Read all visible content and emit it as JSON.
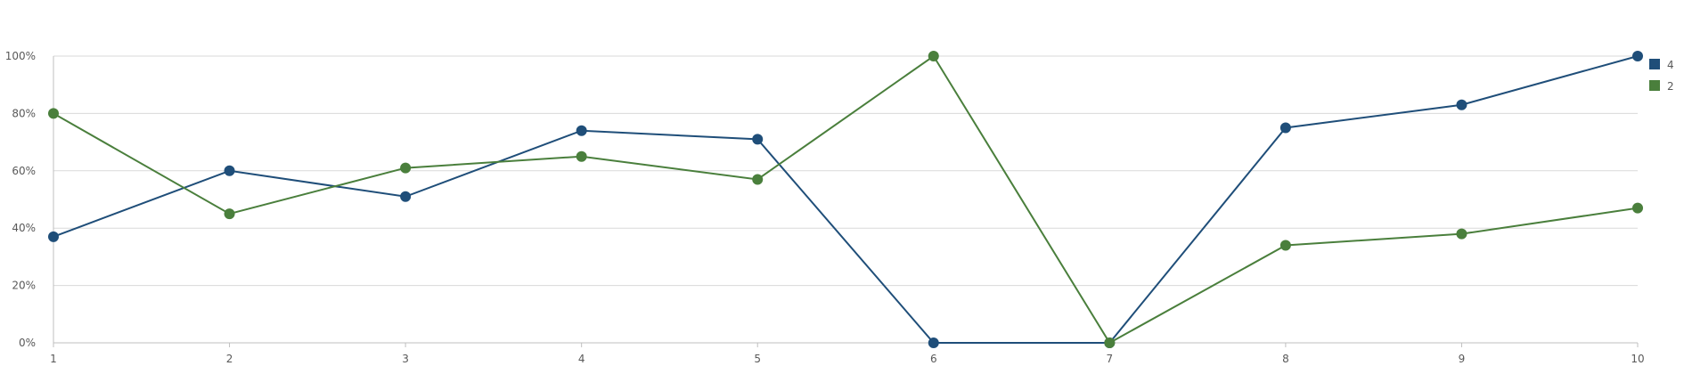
{
  "chart_data": {
    "type": "line",
    "title": "",
    "xlabel": "",
    "ylabel": "",
    "categories": [
      "1",
      "2",
      "3",
      "4",
      "5",
      "6",
      "7",
      "8",
      "9",
      "10"
    ],
    "ylim": [
      0,
      100
    ],
    "y_ticks": [
      "0%",
      "20%",
      "40%",
      "60%",
      "80%",
      "100%"
    ],
    "y_tick_values": [
      0,
      20,
      40,
      60,
      80,
      100
    ],
    "grid": true,
    "legend_position": "top-right",
    "series": [
      {
        "name": "4",
        "color": "#1f4e79",
        "values": [
          37,
          60,
          51,
          74,
          71,
          0,
          0,
          75,
          83,
          100
        ]
      },
      {
        "name": "2",
        "color": "#4a7f3c",
        "values": [
          80,
          45,
          61,
          65,
          57,
          100,
          0,
          34,
          38,
          47
        ]
      }
    ]
  }
}
